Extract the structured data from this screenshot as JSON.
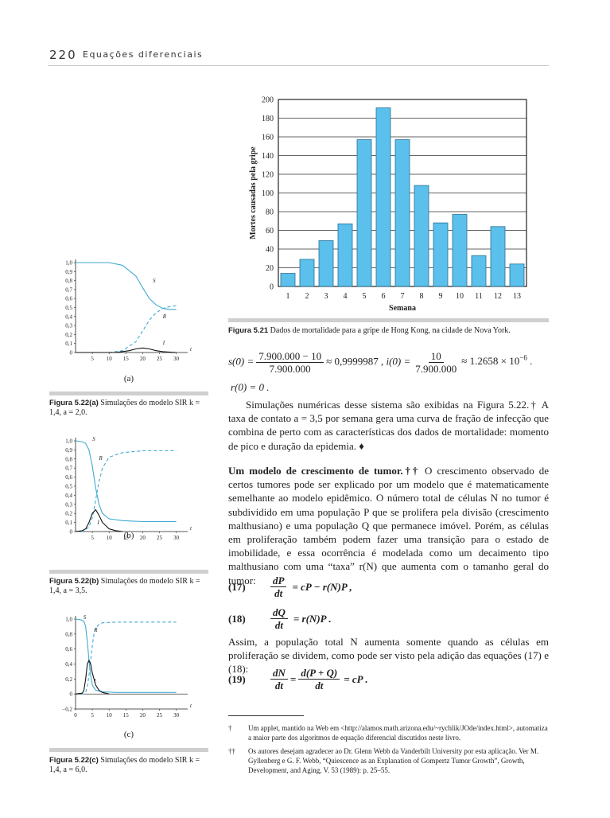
{
  "header": {
    "page_number": "220",
    "running_title": "Equações diferenciais"
  },
  "fig521": {
    "caption_label": "Figura 5.21",
    "caption_text": "Dados de mortalidade para a gripe de Hong Kong, na cidade de Nova York.",
    "chart_data": {
      "type": "bar",
      "categories": [
        "1",
        "2",
        "3",
        "4",
        "5",
        "6",
        "7",
        "8",
        "9",
        "10",
        "11",
        "12",
        "13"
      ],
      "values": [
        14,
        29,
        49,
        67,
        157,
        191,
        157,
        108,
        68,
        77,
        33,
        64,
        24
      ],
      "xlabel": "Semana",
      "ylabel": "Mortes causadas pela gripe",
      "ylim": [
        0,
        200
      ],
      "yticks": [
        "0",
        "20",
        "40",
        "60",
        "80",
        "100",
        "120",
        "140",
        "160",
        "180",
        "200"
      ],
      "grid": true,
      "colors": {
        "bar": "#5bc0eb",
        "stroke": "#2a6f95"
      }
    }
  },
  "fig522a": {
    "tag": "(a)",
    "caption_label": "Figura 5.22(a)",
    "caption_text": "Simulações do modelo SIR k = 1,4, a = 2,0.",
    "chart_data": {
      "type": "line",
      "xticks": [
        "5",
        "10",
        "15",
        "20",
        "25",
        "30"
      ],
      "yticks": [
        "0",
        "0,1",
        "0,2",
        "0,3",
        "0,4",
        "0,5",
        "0,6",
        "0,7",
        "0,8",
        "0,9",
        "1,0"
      ],
      "xlim": [
        0,
        32
      ],
      "ylim": [
        0,
        1.0
      ],
      "xlabel": "t",
      "series": [
        {
          "name": "S",
          "x": [
            0,
            10,
            14,
            18,
            20,
            22,
            24,
            26,
            28,
            30
          ],
          "y": [
            1.0,
            1.0,
            0.97,
            0.85,
            0.72,
            0.6,
            0.53,
            0.49,
            0.48,
            0.48
          ]
        },
        {
          "name": "R",
          "x": [
            0,
            10,
            14,
            18,
            20,
            22,
            24,
            26,
            28,
            30
          ],
          "y": [
            0,
            0,
            0.02,
            0.12,
            0.24,
            0.36,
            0.44,
            0.49,
            0.51,
            0.52
          ]
        },
        {
          "name": "I",
          "x": [
            0,
            12,
            16,
            18,
            20,
            22,
            24,
            26,
            30
          ],
          "y": [
            0,
            0,
            0.02,
            0.04,
            0.05,
            0.04,
            0.02,
            0.01,
            0
          ]
        }
      ]
    }
  },
  "fig522b": {
    "tag": "(b)",
    "caption_label": "Figura 5.22(b)",
    "caption_text": "Simulações do modelo SIR k = 1,4, a = 3,5.",
    "chart_data": {
      "type": "line",
      "xticks": [
        "5",
        "10",
        "15",
        "20",
        "25",
        "30"
      ],
      "yticks": [
        "0",
        "0,1",
        "0,2",
        "0,3",
        "0,4",
        "0,5",
        "0,6",
        "0,7",
        "0,8",
        "0,9",
        "1,0"
      ],
      "xlim": [
        0,
        32
      ],
      "ylim": [
        0,
        1.0
      ],
      "xlabel": "t",
      "series": [
        {
          "name": "S",
          "x": [
            0,
            2,
            3,
            4,
            5,
            6,
            7,
            8,
            10,
            14,
            20,
            30
          ],
          "y": [
            1.0,
            0.99,
            0.97,
            0.9,
            0.72,
            0.48,
            0.3,
            0.2,
            0.14,
            0.12,
            0.11,
            0.11
          ]
        },
        {
          "name": "R",
          "x": [
            0,
            2,
            3,
            4,
            5,
            6,
            7,
            8,
            10,
            14,
            20,
            30
          ],
          "y": [
            0,
            0,
            0.02,
            0.05,
            0.15,
            0.35,
            0.55,
            0.7,
            0.82,
            0.87,
            0.89,
            0.89
          ]
        },
        {
          "name": "I",
          "x": [
            0,
            2,
            3,
            4,
            5,
            6,
            7,
            8,
            10,
            12,
            14
          ],
          "y": [
            0,
            0.01,
            0.03,
            0.1,
            0.2,
            0.24,
            0.18,
            0.1,
            0.03,
            0.01,
            0
          ]
        }
      ]
    }
  },
  "fig522c": {
    "tag": "(c)",
    "caption_label": "Figura 5.22(c)",
    "caption_text": "Simulações do modelo SIR k = 1,4, a = 6,0.",
    "chart_data": {
      "type": "line",
      "xticks": [
        "0",
        "5",
        "10",
        "15",
        "20",
        "25",
        "30"
      ],
      "yticks": [
        "−0,2",
        "0",
        "0,2",
        "0,4",
        "0,6",
        "0,8",
        "1,0"
      ],
      "xlim": [
        0,
        32
      ],
      "ylim": [
        -0.2,
        1.0
      ],
      "xlabel": "t",
      "series": [
        {
          "name": "S",
          "x": [
            0,
            1.5,
            2.5,
            3,
            3.5,
            4,
            4.5,
            5,
            6,
            8,
            12,
            20,
            30
          ],
          "y": [
            1.0,
            0.99,
            0.97,
            0.9,
            0.7,
            0.45,
            0.25,
            0.12,
            0.05,
            0.03,
            0.02,
            0.02,
            0.02
          ]
        },
        {
          "name": "R",
          "x": [
            0,
            2.5,
            3,
            3.5,
            4,
            4.5,
            5,
            5.5,
            6,
            7,
            8,
            12,
            20,
            30
          ],
          "y": [
            0,
            0,
            0.02,
            0.1,
            0.25,
            0.45,
            0.65,
            0.8,
            0.88,
            0.93,
            0.95,
            0.96,
            0.96,
            0.96
          ]
        },
        {
          "name": "I",
          "x": [
            0,
            2,
            2.5,
            3,
            3.5,
            4,
            4.5,
            5,
            6,
            7,
            8,
            10
          ],
          "y": [
            0,
            0.01,
            0.05,
            0.2,
            0.4,
            0.45,
            0.4,
            0.28,
            0.12,
            0.05,
            0.02,
            0
          ]
        }
      ]
    }
  },
  "eq_s0": {
    "lhs": "s(0) =",
    "num": "7.900.000 − 10",
    "den": "7.900.000",
    "approx": "≈ 0,9999987  ,"
  },
  "eq_i0": {
    "lhs": "i(0) =",
    "num": "10",
    "den": "7.900.000",
    "approx": "≈ 1.2658 × 10",
    "exp": "−6",
    "end": "."
  },
  "eq_r0": "r(0) = 0  .",
  "para1": "Simulações numéricas desse sistema são exibidas na Figura 5.22.† A taxa de contato a = 3,5 por semana gera uma curva de fração de infecção que combina de perto com as características dos dados de mortalidade: momento de pico e duração da epidemia. ♦",
  "para2_head": "Um modelo de crescimento de tumor.††",
  "para2": "O crescimento observado de certos tumores pode ser explicado por um modelo que é matematicamente semelhante ao modelo epidêmico. O número total de células N no tumor é subdividido em uma população P que se prolifera pela divisão (crescimento malthusiano) e uma população Q que permanece imóvel. Porém, as células em proliferação também podem fazer uma transição para o estado de imobilidade, e essa ocorrência é modelada como um decaimento tipo malthusiano com uma “taxa” r(N) que aumenta com o tamanho geral do tumor:",
  "eq17": {
    "label": "(17)",
    "num": "dP",
    "den": "dt",
    "rhs": "= cP − r(N)P  ,"
  },
  "eq18": {
    "label": "(18)",
    "num": "dQ",
    "den": "dt",
    "rhs": "= r(N)P  ."
  },
  "para3": "Assim, a população total N aumenta somente quando as células em proliferação se dividem, como pode ser visto pela adição das equações (17) e (18):",
  "eq19": {
    "label": "(19)",
    "num": "dN",
    "den": "dt",
    "eq": "=",
    "num2": "d(P + Q)",
    "den2": "dt",
    "rhs": "= cP  ."
  },
  "footnotes": [
    {
      "mark": "†",
      "text": "Um applet, mantido na Web em <http://alamos.math.arizona.edu/~rychlik/JOde/index.html>, automatiza a maior parte dos algoritmos de equação diferencial discutidos neste livro."
    },
    {
      "mark": "††",
      "text": "Os autores desejam agradecer ao Dr. Glenn Webb da Vanderbilt University por esta aplicação. Ver M. Gyllenberg e G. F. Webb, “Quiescence as an Explanation of Gompertz Tumor Growth”, Growth, Development, and Aging, V. 53 (1989): p. 25–55."
    }
  ]
}
